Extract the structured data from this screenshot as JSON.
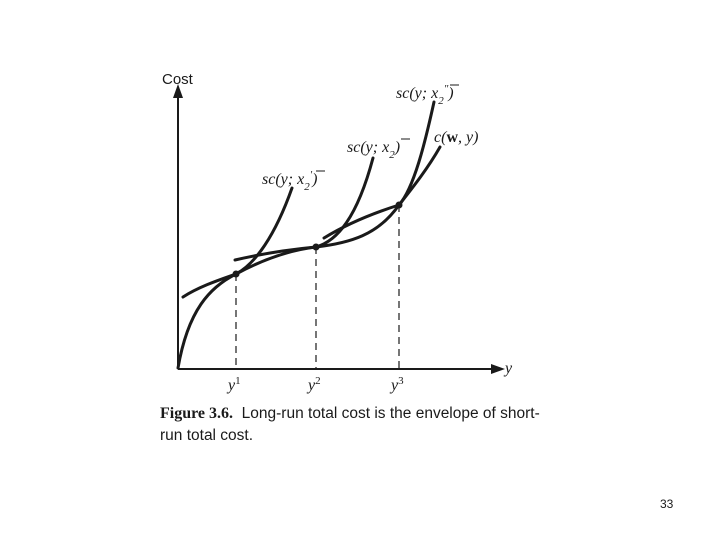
{
  "axes": {
    "y_label": "Cost",
    "x_label": "y"
  },
  "curves": {
    "sc1": {
      "prefix": "sc(y; ",
      "var": "x",
      "sub": "2",
      "prime": "′",
      "close": ")"
    },
    "sc2": {
      "prefix": "sc(y; ",
      "var": "x",
      "sub": "2",
      "prime": "",
      "close": ")"
    },
    "sc3": {
      "prefix": "sc(y; ",
      "var": "x",
      "sub": "2",
      "prime": "″",
      "close": ")"
    },
    "lr": {
      "prefix": "c(",
      "bold": "w",
      "suffix": ", y)"
    }
  },
  "ticks": [
    {
      "base": "y",
      "sup": "1"
    },
    {
      "base": "y",
      "sup": "2"
    },
    {
      "base": "y",
      "sup": "3"
    }
  ],
  "caption": {
    "figure_label": "Figure 3.6.",
    "text": "Long-run total cost is the envelope of short-run total cost."
  },
  "page_number": "33"
}
